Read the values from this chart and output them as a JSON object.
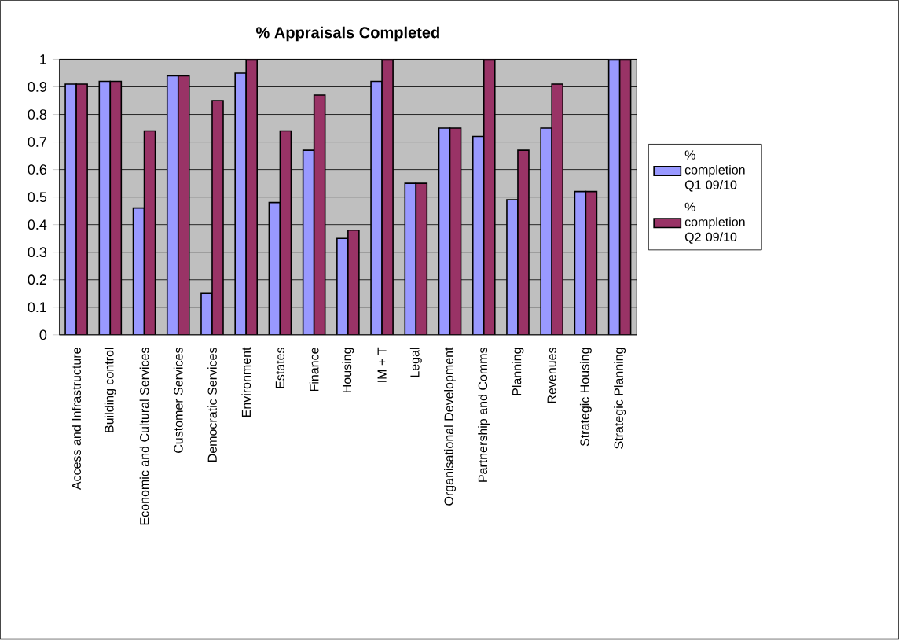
{
  "chart_data": {
    "type": "bar",
    "title": "% Appraisals Completed",
    "categories": [
      "Access and Infrastructure",
      "Building control",
      "Economic and Cultural Services",
      "Customer Services",
      "Democratic Services",
      "Environment",
      "Estates",
      "Finance",
      "Housing",
      "IM + T",
      "Legal",
      "Organisational Development",
      "Partnership and Comms",
      "Planning",
      "Revenues",
      "Strategic Housing",
      "Strategic Planning"
    ],
    "series": [
      {
        "name": "% completion Q1 09/10",
        "color": "#9999ff",
        "values": [
          0.91,
          0.92,
          0.46,
          0.94,
          0.15,
          0.95,
          0.48,
          0.67,
          0.35,
          0.92,
          0.55,
          0.75,
          0.72,
          0.49,
          0.75,
          0.52,
          1.0
        ]
      },
      {
        "name": "% completion Q2 09/10",
        "color": "#993366",
        "values": [
          0.91,
          0.92,
          0.74,
          0.94,
          0.85,
          1.0,
          0.74,
          0.87,
          0.38,
          1.0,
          0.55,
          0.75,
          1.0,
          0.67,
          0.91,
          0.52,
          1.0
        ]
      }
    ],
    "ylim": [
      0,
      1
    ],
    "yticks": [
      0,
      0.1,
      0.2,
      0.3,
      0.4,
      0.5,
      0.6,
      0.7,
      0.8,
      0.9,
      1
    ],
    "grid": "y",
    "legend": "right"
  }
}
